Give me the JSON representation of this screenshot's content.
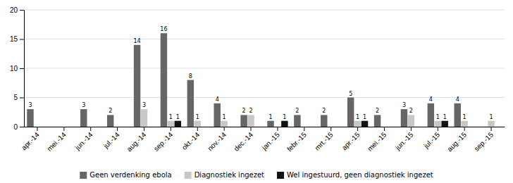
{
  "chart_data": {
    "type": "bar",
    "categories": [
      "apr.-14",
      "mei.-14",
      "jun.-14",
      "jul.-14",
      "aug.-14",
      "sep.-14",
      "okt.-14",
      "nov.-14",
      "dec.-14",
      "jan.-15",
      "febr.-15",
      "mrt.-15",
      "apr.-15",
      "mei.-15",
      "jun.-15",
      "jul.-15",
      "aug.-15",
      "sep.-15"
    ],
    "series": [
      {
        "name": "Geen verdenking ebola",
        "color": "#666666",
        "values": [
          3,
          0,
          3,
          2,
          14,
          16,
          8,
          4,
          2,
          1,
          2,
          2,
          5,
          2,
          3,
          4,
          4,
          0
        ],
        "value_labels": [
          "3",
          null,
          "3",
          "2",
          "14",
          "16",
          "8",
          "4",
          "2",
          "1",
          "2",
          "2",
          "5",
          "2",
          "3",
          "4",
          "4",
          null
        ]
      },
      {
        "name": "Diagnostiek ingezet",
        "color": "#c8c8c8",
        "values": [
          0,
          0,
          0,
          0,
          3,
          1,
          1,
          1,
          2,
          0,
          0,
          0,
          1,
          0,
          2,
          1,
          1,
          1
        ],
        "value_labels": [
          null,
          null,
          null,
          null,
          "3",
          "1",
          "1",
          "1",
          "2",
          null,
          null,
          null,
          "1",
          null,
          "2",
          "1",
          "1",
          "1"
        ]
      },
      {
        "name": "Wel ingestuurd, geen diagnostiek ingezet",
        "color": "#111111",
        "values": [
          0,
          0,
          0,
          0,
          0,
          1,
          0,
          0,
          0,
          1,
          0,
          0,
          1,
          0,
          0,
          1,
          0,
          0
        ],
        "value_labels": [
          null,
          null,
          null,
          null,
          null,
          "1",
          null,
          null,
          null,
          "1",
          null,
          null,
          "1",
          null,
          null,
          "1",
          null,
          null
        ]
      }
    ],
    "ylim": [
      0,
      20
    ],
    "yticks": [
      0,
      5,
      10,
      15,
      20
    ],
    "grid": true,
    "legend": "bottom",
    "data_labels": true
  }
}
